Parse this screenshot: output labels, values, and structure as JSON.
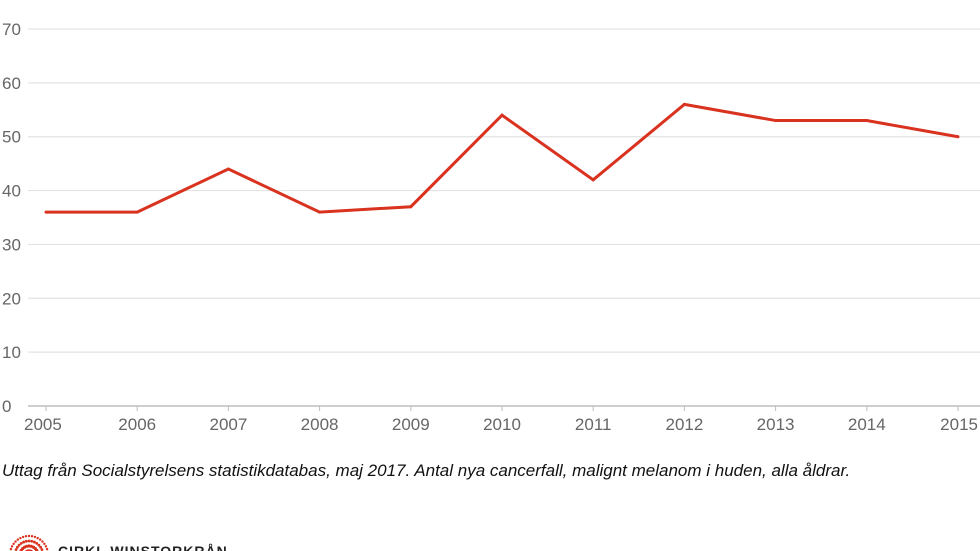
{
  "chart_data": {
    "type": "line",
    "title": "",
    "xlabel": "",
    "ylabel": "",
    "categories": [
      "2005",
      "2006",
      "2007",
      "2008",
      "2009",
      "2010",
      "2011",
      "2012",
      "2013",
      "2014",
      "2015"
    ],
    "series": [
      {
        "name": "Antal nya cancerfall, malignt melanom i huden",
        "values": [
          36,
          36,
          44,
          36,
          37,
          54,
          42,
          56,
          53,
          53,
          50
        ]
      }
    ],
    "ylim": [
      0,
      70
    ],
    "yticks": [
      "0",
      "10",
      "20",
      "30",
      "40",
      "50",
      "60",
      "70"
    ],
    "grid": true,
    "line_color": "#d9321f",
    "grid_color": "#e3e3e3"
  },
  "caption": "Uttag från Socialstyrelsens statistikdatabas, maj 2017. Antal nya cancerfall, malignt melanom i huden, alla åldrar.",
  "logo": {
    "text": "CIRKL WINSTORKRÅN",
    "color": "#d9321f"
  }
}
